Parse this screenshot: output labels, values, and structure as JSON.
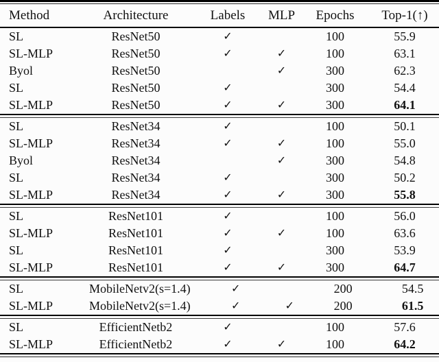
{
  "colors": {
    "background": "#fcfcfc",
    "text": "#111111",
    "rule": "#000000"
  },
  "table": {
    "check_glyph": "✓",
    "columns": [
      {
        "key": "method",
        "label": "Method"
      },
      {
        "key": "architecture",
        "label": "Architecture"
      },
      {
        "key": "labels",
        "label": "Labels"
      },
      {
        "key": "mlp",
        "label": "MLP"
      },
      {
        "key": "epochs",
        "label": "Epochs"
      },
      {
        "key": "top1",
        "label": "Top-1(↑)"
      }
    ],
    "sections": [
      {
        "rows": [
          {
            "method": "SL",
            "architecture": "ResNet50",
            "labels": true,
            "mlp": false,
            "epochs": "100",
            "top1": "55.9",
            "top1_bold": false
          },
          {
            "method": "SL-MLP",
            "architecture": "ResNet50",
            "labels": true,
            "mlp": true,
            "epochs": "100",
            "top1": "63.1",
            "top1_bold": false
          },
          {
            "method": "Byol",
            "architecture": "ResNet50",
            "labels": false,
            "mlp": true,
            "epochs": "300",
            "top1": "62.3",
            "top1_bold": false
          },
          {
            "method": "SL",
            "architecture": "ResNet50",
            "labels": true,
            "mlp": false,
            "epochs": "300",
            "top1": "54.4",
            "top1_bold": false
          },
          {
            "method": "SL-MLP",
            "architecture": "ResNet50",
            "labels": true,
            "mlp": true,
            "epochs": "300",
            "top1": "64.1",
            "top1_bold": true
          }
        ]
      },
      {
        "rows": [
          {
            "method": "SL",
            "architecture": "ResNet34",
            "labels": true,
            "mlp": false,
            "epochs": "100",
            "top1": "50.1",
            "top1_bold": false
          },
          {
            "method": "SL-MLP",
            "architecture": "ResNet34",
            "labels": true,
            "mlp": true,
            "epochs": "100",
            "top1": "55.0",
            "top1_bold": false
          },
          {
            "method": "Byol",
            "architecture": "ResNet34",
            "labels": false,
            "mlp": true,
            "epochs": "300",
            "top1": "54.8",
            "top1_bold": false
          },
          {
            "method": "SL",
            "architecture": "ResNet34",
            "labels": true,
            "mlp": false,
            "epochs": "300",
            "top1": "50.2",
            "top1_bold": false
          },
          {
            "method": "SL-MLP",
            "architecture": "ResNet34",
            "labels": true,
            "mlp": true,
            "epochs": "300",
            "top1": "55.8",
            "top1_bold": true
          }
        ]
      },
      {
        "rows": [
          {
            "method": "SL",
            "architecture": "ResNet101",
            "labels": true,
            "mlp": false,
            "epochs": "100",
            "top1": "56.0",
            "top1_bold": false
          },
          {
            "method": "SL-MLP",
            "architecture": "ResNet101",
            "labels": true,
            "mlp": true,
            "epochs": "100",
            "top1": "63.6",
            "top1_bold": false
          },
          {
            "method": "SL",
            "architecture": "ResNet101",
            "labels": true,
            "mlp": false,
            "epochs": "300",
            "top1": "53.9",
            "top1_bold": false
          },
          {
            "method": "SL-MLP",
            "architecture": "ResNet101",
            "labels": true,
            "mlp": true,
            "epochs": "300",
            "top1": "64.7",
            "top1_bold": true
          }
        ]
      },
      {
        "rows": [
          {
            "method": "SL",
            "architecture": "MobileNetv2(s=1.4)",
            "labels": true,
            "mlp": false,
            "epochs": "200",
            "top1": "54.5",
            "top1_bold": false
          },
          {
            "method": "SL-MLP",
            "architecture": "MobileNetv2(s=1.4)",
            "labels": true,
            "mlp": true,
            "epochs": "200",
            "top1": "61.5",
            "top1_bold": true
          }
        ]
      },
      {
        "rows": [
          {
            "method": "SL",
            "architecture": "EfficientNetb2",
            "labels": true,
            "mlp": false,
            "epochs": "100",
            "top1": "57.6",
            "top1_bold": false
          },
          {
            "method": "SL-MLP",
            "architecture": "EfficientNetb2",
            "labels": true,
            "mlp": true,
            "epochs": "100",
            "top1": "64.2",
            "top1_bold": true
          }
        ]
      }
    ]
  }
}
